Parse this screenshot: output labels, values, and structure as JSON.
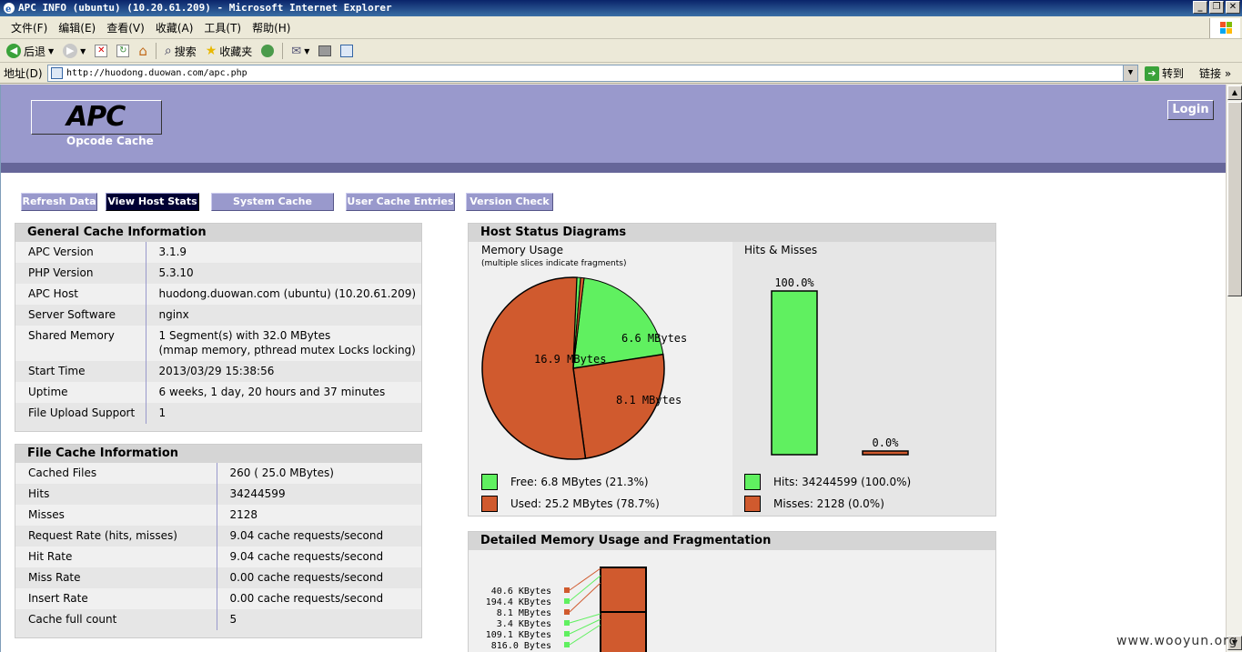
{
  "window": {
    "title": "APC INFO (ubuntu) (10.20.61.209) - Microsoft Internet Explorer",
    "controls": [
      "_",
      "❐",
      "✕"
    ]
  },
  "menu": [
    "文件(F)",
    "编辑(E)",
    "查看(V)",
    "收藏(A)",
    "工具(T)",
    "帮助(H)"
  ],
  "toolbar": {
    "back": "后退",
    "search": "搜索",
    "favorites": "收藏夹"
  },
  "address": {
    "label": "地址(D)",
    "url": "http://huodong.duowan.com/apc.php",
    "go": "转到",
    "links": "链接"
  },
  "apc": {
    "logo": "APC",
    "subtitle": "Opcode Cache",
    "login": "Login",
    "nav": [
      "Refresh Data",
      "View Host Stats",
      "System Cache Entries",
      "User Cache Entries",
      "Version Check"
    ],
    "active_nav": "View Host Stats"
  },
  "general": {
    "title": "General Cache Information",
    "rows": [
      [
        "APC Version",
        "3.1.9"
      ],
      [
        "PHP Version",
        "5.3.10"
      ],
      [
        "APC Host",
        "huodong.duowan.com (ubuntu) (10.20.61.209)"
      ],
      [
        "Server Software",
        "nginx"
      ],
      [
        "Shared Memory",
        "1 Segment(s) with 32.0 MBytes"
      ],
      [
        "Start Time",
        "2013/03/29 15:38:56"
      ],
      [
        "Uptime",
        "6 weeks, 1 day, 20 hours and 37 minutes"
      ],
      [
        "File Upload Support",
        "1"
      ]
    ],
    "shared_memory_line2": "(mmap memory, pthread mutex Locks locking)"
  },
  "file_cache": {
    "title": "File Cache Information",
    "rows": [
      [
        "Cached Files",
        "260 ( 25.0 MBytes)"
      ],
      [
        "Hits",
        "34244599"
      ],
      [
        "Misses",
        "2128"
      ],
      [
        "Request Rate (hits, misses)",
        "9.04 cache requests/second"
      ],
      [
        "Hit Rate",
        "9.04 cache requests/second"
      ],
      [
        "Miss Rate",
        "0.00 cache requests/second"
      ],
      [
        "Insert Rate",
        "0.00 cache requests/second"
      ],
      [
        "Cache full count",
        "5"
      ]
    ]
  },
  "host_diagrams": {
    "title": "Host Status Diagrams",
    "memory_title": "Memory Usage",
    "memory_note": "(multiple slices indicate fragments)",
    "hits_title": "Hits & Misses",
    "legend_free": "Free: 6.8 MBytes (21.3%)",
    "legend_used": "Used: 25.2 MBytes (78.7%)",
    "legend_hits": "Hits: 34244599 (100.0%)",
    "legend_misses": "Misses: 2128 (0.0%)",
    "colors": {
      "free": "#60f060",
      "used": "#d05a2e"
    }
  },
  "chart_data": [
    {
      "type": "pie",
      "slices": [
        {
          "label": "6.6 MBytes",
          "value": 6.6,
          "kind": "free"
        },
        {
          "label": "8.1 MBytes",
          "value": 8.1,
          "kind": "used"
        },
        {
          "label": "16.9 MBytes",
          "value": 16.9,
          "kind": "used"
        },
        {
          "label": "",
          "value": 0.2,
          "kind": "free"
        },
        {
          "label": "",
          "value": 0.2,
          "kind": "used"
        }
      ]
    },
    {
      "type": "bar",
      "categories": [
        "Hits",
        "Misses"
      ],
      "values": [
        100.0,
        0.0
      ],
      "labels": [
        "100.0%",
        "0.0%"
      ],
      "ylim": [
        0,
        100
      ]
    }
  ],
  "fragmentation": {
    "title": "Detailed Memory Usage and Fragmentation",
    "labels": [
      "40.6 KBytes",
      "194.4 KBytes",
      "8.1 MBytes",
      "3.4 KBytes",
      "109.1 KBytes",
      "816.0 Bytes"
    ],
    "markers": [
      "used",
      "free",
      "used",
      "free",
      "free",
      "free"
    ]
  },
  "watermark": "www.wooyun.org"
}
